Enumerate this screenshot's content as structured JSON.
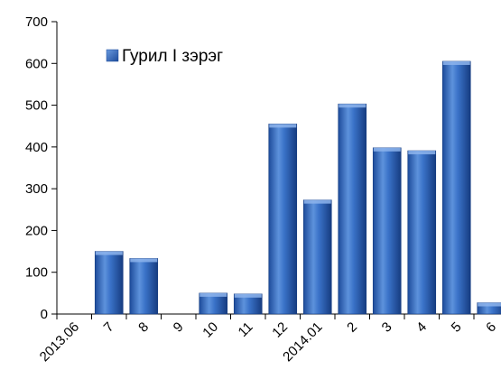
{
  "chart_data": {
    "type": "bar",
    "title": "",
    "xlabel": "",
    "ylabel": "",
    "categories": [
      "2013.06",
      "7",
      "8",
      "9",
      "10",
      "11",
      "12",
      "2014.01",
      "2",
      "3",
      "4",
      "5",
      "6"
    ],
    "series": [
      {
        "name": "Гурил I зэрэг",
        "values": [
          0,
          150,
          133,
          0,
          50,
          48,
          455,
          273,
          503,
          398,
          391,
          605,
          27
        ]
      }
    ],
    "ylim": [
      0,
      700
    ],
    "yticks": [
      0,
      100,
      200,
      300,
      400,
      500,
      600,
      700
    ],
    "grid": false,
    "legend_position": "top-left",
    "colors": {
      "bar_light": "#6a9be0",
      "bar_mid": "#2e65c0",
      "bar_dark": "#173f86",
      "bar_top": "#8db4ec",
      "axis": "#000000"
    }
  }
}
